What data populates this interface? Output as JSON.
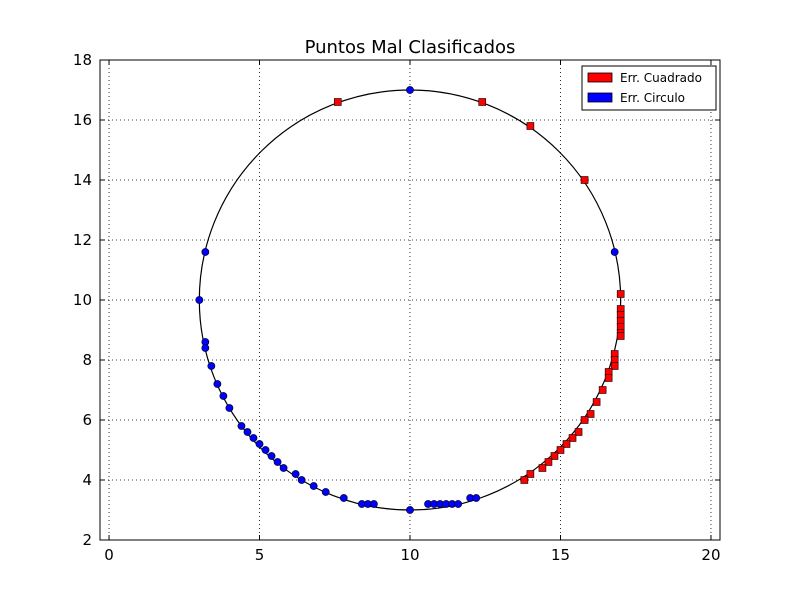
{
  "chart_data": {
    "type": "scatter",
    "title": "Puntos Mal Clasificados",
    "xlabel": "",
    "ylabel": "",
    "xlim": [
      -0.3,
      20.3
    ],
    "ylim": [
      2,
      18
    ],
    "x_ticks": [
      0,
      5,
      10,
      15,
      20
    ],
    "y_ticks": [
      2,
      4,
      6,
      8,
      10,
      12,
      14,
      16,
      18
    ],
    "grid": true,
    "legend_position": "top-right",
    "circle": {
      "center": [
        10,
        10
      ],
      "radius": 7
    },
    "series": [
      {
        "name": "Err. Cuadrado",
        "marker": "square",
        "color": "#ff0000",
        "points": [
          [
            7.6,
            16.6
          ],
          [
            12.4,
            16.6
          ],
          [
            14.0,
            15.8
          ],
          [
            15.8,
            14.0
          ],
          [
            17.0,
            10.2
          ],
          [
            17.0,
            9.7
          ],
          [
            17.0,
            9.5
          ],
          [
            17.0,
            9.3
          ],
          [
            17.0,
            9.1
          ],
          [
            17.0,
            8.9
          ],
          [
            17.0,
            8.8
          ],
          [
            16.8,
            8.2
          ],
          [
            16.8,
            8.0
          ],
          [
            16.8,
            7.8
          ],
          [
            16.6,
            7.6
          ],
          [
            16.6,
            7.4
          ],
          [
            16.4,
            7.0
          ],
          [
            16.2,
            6.6
          ],
          [
            16.0,
            6.2
          ],
          [
            15.8,
            6.0
          ],
          [
            15.6,
            5.6
          ],
          [
            15.4,
            5.4
          ],
          [
            15.2,
            5.2
          ],
          [
            15.0,
            5.0
          ],
          [
            14.8,
            4.8
          ],
          [
            14.6,
            4.6
          ],
          [
            14.4,
            4.4
          ],
          [
            14.0,
            4.2
          ],
          [
            13.8,
            4.0
          ]
        ]
      },
      {
        "name": "Err. Circulo",
        "marker": "circle",
        "color": "#0000ff",
        "points": [
          [
            10.0,
            17.0
          ],
          [
            3.2,
            11.6
          ],
          [
            16.8,
            11.6
          ],
          [
            3.0,
            10.0
          ],
          [
            3.2,
            8.6
          ],
          [
            3.2,
            8.4
          ],
          [
            3.4,
            7.8
          ],
          [
            3.6,
            7.2
          ],
          [
            3.8,
            6.8
          ],
          [
            4.0,
            6.4
          ],
          [
            4.4,
            5.8
          ],
          [
            4.6,
            5.6
          ],
          [
            4.8,
            5.4
          ],
          [
            5.0,
            5.2
          ],
          [
            5.2,
            5.0
          ],
          [
            5.4,
            4.8
          ],
          [
            5.6,
            4.6
          ],
          [
            5.8,
            4.4
          ],
          [
            6.2,
            4.2
          ],
          [
            6.4,
            4.0
          ],
          [
            6.8,
            3.8
          ],
          [
            7.2,
            3.6
          ],
          [
            7.8,
            3.4
          ],
          [
            8.4,
            3.2
          ],
          [
            8.6,
            3.2
          ],
          [
            8.8,
            3.2
          ],
          [
            10.0,
            3.0
          ],
          [
            10.6,
            3.2
          ],
          [
            10.8,
            3.2
          ],
          [
            11.0,
            3.2
          ],
          [
            11.2,
            3.2
          ],
          [
            11.4,
            3.2
          ],
          [
            11.6,
            3.2
          ],
          [
            12.0,
            3.4
          ],
          [
            12.2,
            3.4
          ]
        ]
      }
    ]
  }
}
